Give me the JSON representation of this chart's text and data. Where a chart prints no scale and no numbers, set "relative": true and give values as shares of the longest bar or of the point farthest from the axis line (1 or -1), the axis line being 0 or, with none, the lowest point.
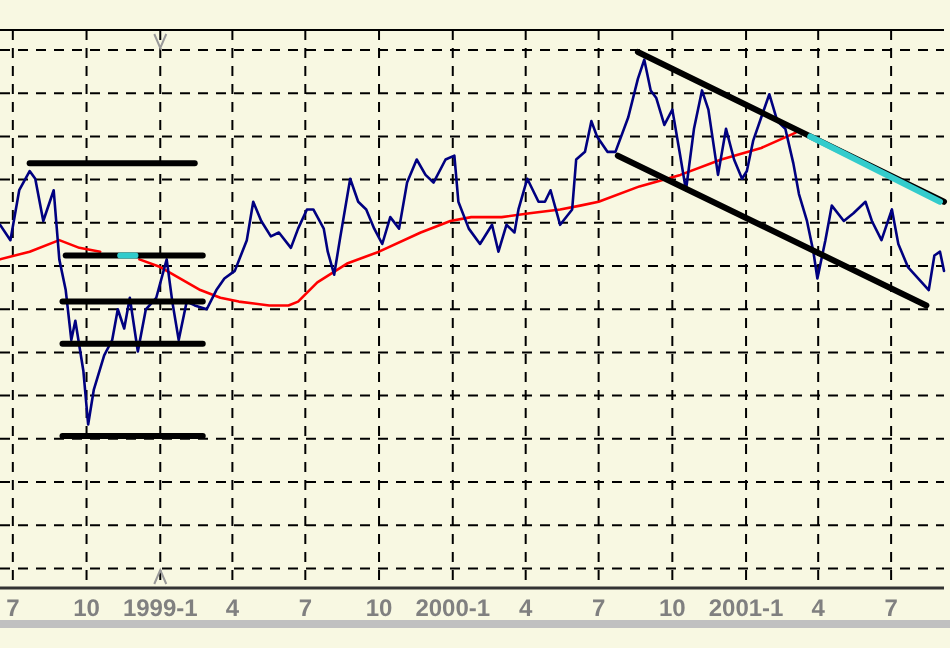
{
  "chart_data": {
    "type": "line",
    "relative": true,
    "grid": true,
    "xlim": [
      "1998-06-15",
      "2001-09-05"
    ],
    "xticks": [
      {
        "value": "1998-07-01",
        "label": "7"
      },
      {
        "value": "1998-10-01",
        "label": "10"
      },
      {
        "value": "1999-01-01",
        "label": "1999-1"
      },
      {
        "value": "1999-04-01",
        "label": "4"
      },
      {
        "value": "1999-07-01",
        "label": "7"
      },
      {
        "value": "1999-10-01",
        "label": "10"
      },
      {
        "value": "2000-01-01",
        "label": "2000-1"
      },
      {
        "value": "2000-04-01",
        "label": "4"
      },
      {
        "value": "2000-07-01",
        "label": "7"
      },
      {
        "value": "2000-10-01",
        "label": "10"
      },
      {
        "value": "2001-01-01",
        "label": "2001-1"
      },
      {
        "value": "2001-04-01",
        "label": "4"
      },
      {
        "value": "2001-07-01",
        "label": "7"
      }
    ],
    "series": [
      {
        "color": "#ff0000",
        "x": [
          "1998-06-15",
          "1998-07-22",
          "1998-08-28",
          "1998-09-22",
          "1998-10-18",
          "1998-11-12",
          "1998-12-06",
          "1999-01-01",
          "1999-01-26",
          "1999-02-20",
          "1999-03-17",
          "1999-04-09",
          "1999-05-17",
          "1999-06-10",
          "1999-06-22",
          "1999-07-16",
          "1999-08-23",
          "1999-10-01",
          "1999-11-22",
          "1999-12-29",
          "2000-01-24",
          "2000-03-02",
          "2000-04-06",
          "2000-05-14",
          "2000-06-08",
          "2000-07-01",
          "2000-08-21",
          "2000-10-11",
          "2000-12-01",
          "2001-01-20",
          "2001-03-04"
        ],
        "values": [
          0.46,
          0.48,
          0.51,
          0.49,
          0.48,
          null,
          0.46,
          0.44,
          0.41,
          0.38,
          0.36,
          0.35,
          0.34,
          0.34,
          0.35,
          0.4,
          0.45,
          0.48,
          0.53,
          0.56,
          0.57,
          0.57,
          0.58,
          0.59,
          0.6,
          0.61,
          0.65,
          0.68,
          0.72,
          0.75,
          0.79
        ]
      },
      {
        "color": "#000080",
        "x": [
          "1998-06-15",
          "1998-06-28",
          "1998-07-09",
          "1998-07-22",
          "1998-07-29",
          "1998-08-08",
          "1998-08-21",
          "1998-08-28",
          "1998-09-05",
          "1998-09-12",
          "1998-09-17",
          "1998-09-27",
          "1998-10-03",
          "1998-10-10",
          "1998-10-23",
          "1998-11-02",
          "1998-11-09",
          "1998-11-17",
          "1998-11-24",
          "1998-12-04",
          "1998-12-14",
          "1998-12-27",
          "1999-01-09",
          "1999-01-16",
          "1999-01-24",
          "1999-02-03",
          "1999-02-13",
          "1999-02-28",
          "1999-03-12",
          "1999-03-22",
          "1999-04-04",
          "1999-04-19",
          "1999-04-27",
          "1999-05-07",
          "1999-05-19",
          "1999-05-29",
          "1999-06-13",
          "1999-06-22",
          "1999-07-03",
          "1999-07-11",
          "1999-07-24",
          "1999-07-29",
          "1999-08-06",
          "1999-08-13",
          "1999-08-26",
          "1999-09-05",
          "1999-09-15",
          "1999-09-25",
          "1999-10-05",
          "1999-10-15",
          "1999-10-26",
          "1999-11-05",
          "1999-11-17",
          "1999-11-28",
          "1999-12-08",
          "1999-12-23",
          "2000-01-03",
          "2000-01-08",
          "2000-01-21",
          "2000-02-04",
          "2000-02-19",
          "2000-02-27",
          "2000-03-08",
          "2000-03-18",
          "2000-03-23",
          "2000-04-03",
          "2000-04-17",
          "2000-04-25",
          "2000-05-02",
          "2000-05-14",
          "2000-05-29",
          "2000-06-03",
          "2000-06-14",
          "2000-06-22",
          "2000-06-29",
          "2000-07-12",
          "2000-07-22",
          "2000-08-07",
          "2000-08-19",
          "2000-08-27",
          "2000-09-04",
          "2000-09-11",
          "2000-09-21",
          "2000-10-01",
          "2000-10-10",
          "2000-10-18",
          "2000-10-28",
          "2000-11-07",
          "2000-11-15",
          "2000-11-27",
          "2000-12-07",
          "2000-12-17",
          "2000-12-27",
          "2001-01-02",
          "2001-01-10",
          "2001-01-20",
          "2001-01-30",
          "2001-02-09",
          "2001-02-19",
          "2001-03-01",
          "2001-03-08",
          "2001-03-18",
          "2001-03-26",
          "2001-03-31",
          "2001-04-10",
          "2001-04-18",
          "2001-05-03",
          "2001-05-15",
          "2001-05-30",
          "2001-06-07",
          "2001-06-19",
          "2001-07-02",
          "2001-07-10",
          "2001-07-22",
          "2001-08-04",
          "2001-08-17",
          "2001-08-24",
          "2001-08-31",
          "2001-09-05"
        ],
        "values": [
          0.55,
          0.51,
          0.64,
          0.69,
          0.67,
          0.56,
          0.64,
          0.46,
          0.38,
          0.25,
          0.3,
          0.17,
          0.03,
          0.12,
          0.21,
          0.25,
          0.33,
          0.28,
          0.36,
          0.22,
          0.33,
          0.36,
          0.46,
          0.35,
          0.25,
          0.35,
          0.34,
          0.33,
          0.38,
          0.41,
          0.43,
          0.51,
          0.61,
          0.56,
          0.52,
          0.53,
          0.49,
          0.54,
          0.59,
          0.59,
          0.54,
          0.48,
          0.42,
          0.51,
          0.67,
          0.61,
          0.59,
          0.54,
          0.5,
          0.57,
          0.54,
          0.66,
          0.72,
          0.68,
          0.66,
          0.72,
          0.73,
          0.61,
          0.54,
          0.5,
          0.55,
          0.48,
          0.55,
          0.53,
          0.59,
          0.67,
          0.61,
          0.61,
          0.64,
          0.55,
          0.59,
          0.72,
          0.74,
          0.82,
          0.78,
          0.74,
          0.74,
          0.83,
          0.93,
          0.98,
          0.9,
          0.88,
          0.81,
          0.85,
          0.74,
          0.64,
          0.8,
          0.9,
          0.85,
          0.68,
          0.8,
          0.72,
          0.67,
          0.69,
          0.77,
          0.83,
          0.89,
          0.82,
          0.8,
          0.71,
          0.63,
          0.56,
          0.48,
          0.41,
          0.51,
          0.6,
          0.56,
          0.58,
          0.61,
          0.56,
          0.51,
          0.59,
          0.5,
          0.44,
          0.41,
          0.38,
          0.47,
          0.48,
          0.43
        ]
      },
      {
        "color": "#000000",
        "x": [
          "1998-07-22",
          "1999-02-13"
        ],
        "values": [
          0.71,
          0.71
        ]
      },
      {
        "color": "#000000",
        "x": [
          "1998-09-05",
          "1999-02-23"
        ],
        "values": [
          0.47,
          0.47
        ]
      },
      {
        "color": "#000000",
        "x": [
          "1998-09-01",
          "1999-02-23"
        ],
        "values": [
          0.35,
          0.35
        ]
      },
      {
        "color": "#000000",
        "x": [
          "1998-09-01",
          "1999-02-23"
        ],
        "values": [
          0.24,
          0.24
        ]
      },
      {
        "color": "#000000",
        "x": [
          "1998-09-01",
          "1999-02-23"
        ],
        "values": [
          0,
          0
        ]
      },
      {
        "color": "#000000",
        "x": [
          "2000-08-19",
          "2001-09-05"
        ],
        "values": [
          1,
          0.61
        ]
      },
      {
        "color": "#000000",
        "x": [
          "2000-07-25",
          "2001-08-14"
        ],
        "values": [
          0.73,
          0.34
        ]
      },
      {
        "color": "#33cccc",
        "x": [
          "1998-11-12",
          "1998-12-01"
        ],
        "values": [
          0.47,
          0.47
        ]
      },
      {
        "color": "#33cccc",
        "x": [
          "2001-03-22",
          "2001-08-31"
        ],
        "values": [
          0.78,
          0.61
        ]
      }
    ]
  }
}
